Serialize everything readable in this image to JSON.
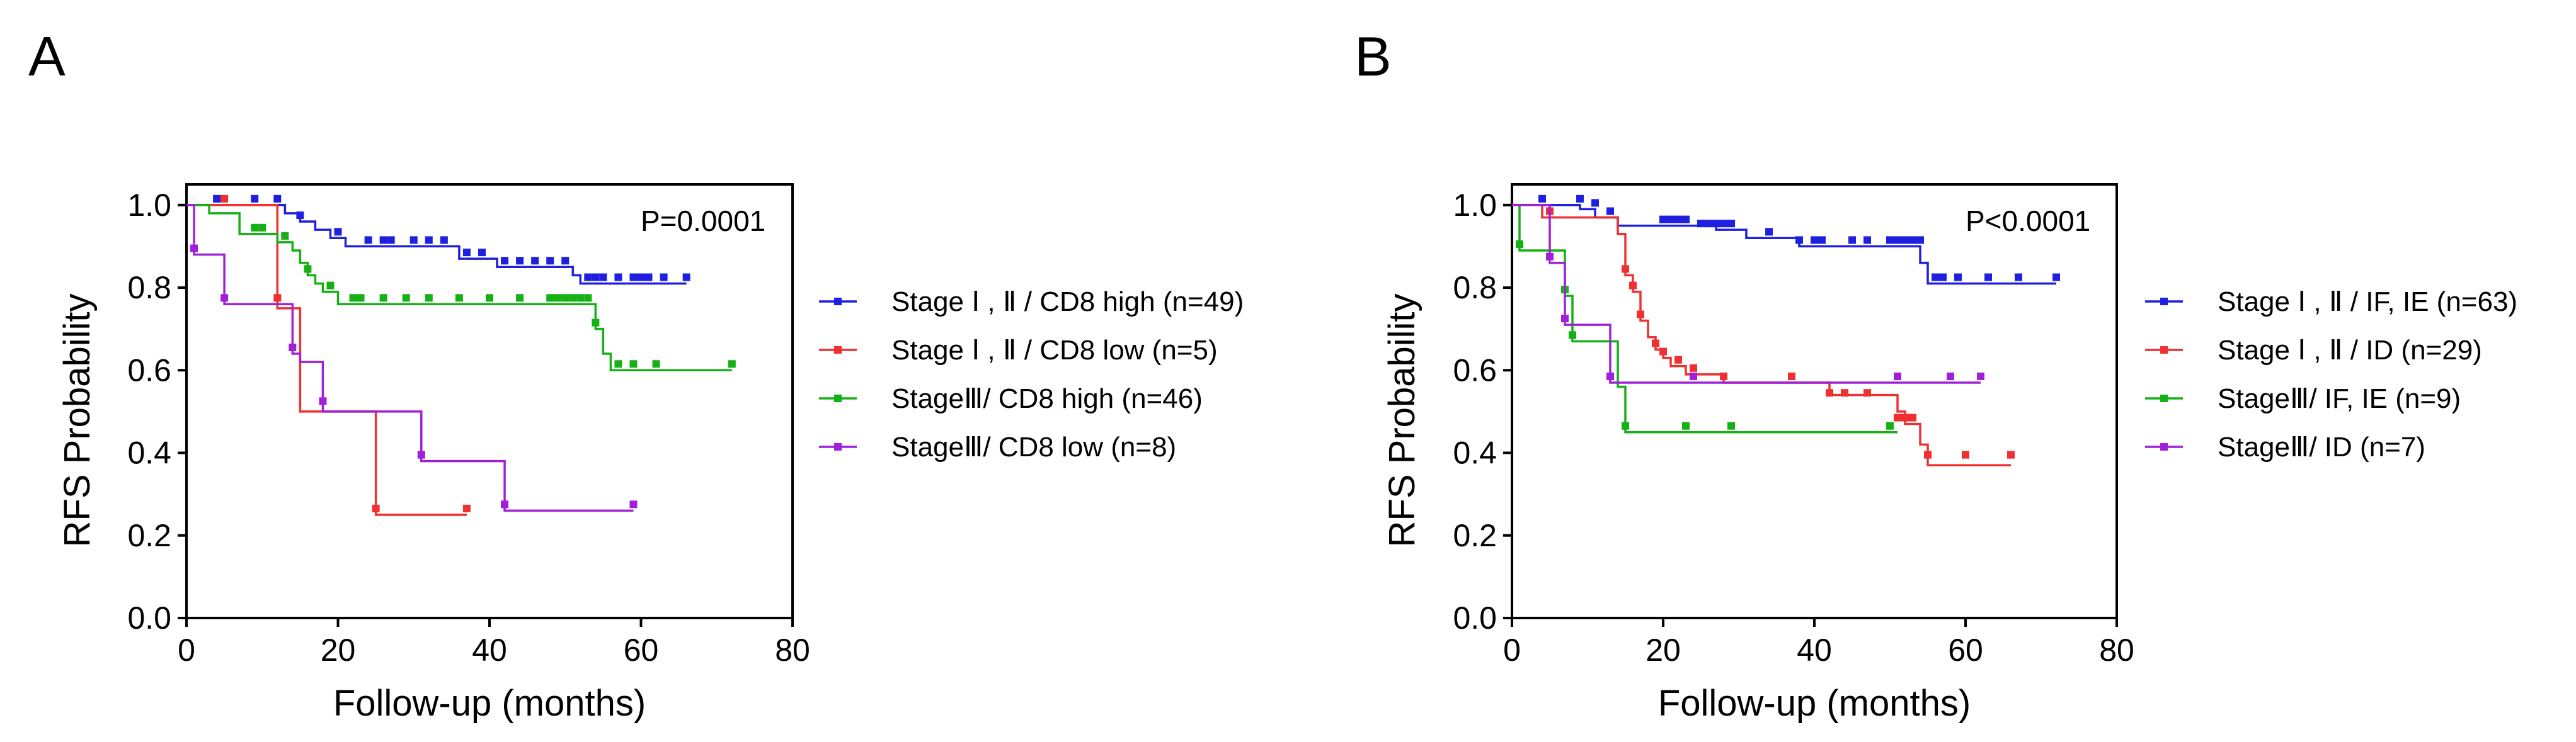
{
  "chart_data": [
    {
      "panel": "A",
      "type": "line",
      "subtype": "kaplan-meier",
      "title": "",
      "xlabel": "Follow-up (months)",
      "ylabel": "RFS Probability",
      "xlim": [
        0,
        80
      ],
      "ylim": [
        0,
        1.0
      ],
      "xticks": [
        "0",
        "20",
        "40",
        "60",
        "80"
      ],
      "yticks": [
        "0.0",
        "0.2",
        "0.4",
        "0.6",
        "0.8",
        "1.0"
      ],
      "pvalue": "P=0.0001",
      "series": [
        {
          "name": "Stage Ⅰ , Ⅱ / CD8 high (n=49)",
          "color": "#1f1fe0",
          "steps": [
            [
              0,
              1.0
            ],
            [
              13,
              0.98
            ],
            [
              15,
              0.96
            ],
            [
              17,
              0.94
            ],
            [
              19,
              0.92
            ],
            [
              21,
              0.9
            ],
            [
              36,
              0.87
            ],
            [
              41,
              0.85
            ],
            [
              51,
              0.83
            ],
            [
              52,
              0.81
            ],
            [
              66,
              0.81
            ]
          ],
          "censors": [
            [
              4,
              1.0
            ],
            [
              9,
              1.0
            ],
            [
              12,
              1.0
            ],
            [
              15,
              0.96
            ],
            [
              20,
              0.92
            ],
            [
              24,
              0.9
            ],
            [
              26,
              0.9
            ],
            [
              27,
              0.9
            ],
            [
              30,
              0.9
            ],
            [
              32,
              0.9
            ],
            [
              34,
              0.9
            ],
            [
              37,
              0.87
            ],
            [
              39,
              0.87
            ],
            [
              42,
              0.85
            ],
            [
              44,
              0.85
            ],
            [
              46,
              0.85
            ],
            [
              48,
              0.85
            ],
            [
              50,
              0.85
            ],
            [
              53,
              0.81
            ],
            [
              54,
              0.81
            ],
            [
              55,
              0.81
            ],
            [
              57,
              0.81
            ],
            [
              59,
              0.81
            ],
            [
              60,
              0.81
            ],
            [
              61,
              0.81
            ],
            [
              63,
              0.81
            ],
            [
              66,
              0.81
            ]
          ]
        },
        {
          "name": "Stage Ⅰ , Ⅱ / CD8 low (n=5)",
          "color": "#f03030",
          "steps": [
            [
              0,
              1.0
            ],
            [
              12,
              0.75
            ],
            [
              15,
              0.5
            ],
            [
              25,
              0.25
            ],
            [
              37,
              0.25
            ]
          ],
          "censors": [
            [
              5,
              1.0
            ],
            [
              12,
              0.76
            ],
            [
              25,
              0.25
            ],
            [
              37,
              0.25
            ]
          ]
        },
        {
          "name": "StageⅢ/ CD8 high (n=46)",
          "color": "#14b014",
          "steps": [
            [
              0,
              1.0
            ],
            [
              3,
              0.98
            ],
            [
              7,
              0.93
            ],
            [
              12,
              0.91
            ],
            [
              14,
              0.89
            ],
            [
              15,
              0.86
            ],
            [
              16,
              0.83
            ],
            [
              17,
              0.81
            ],
            [
              18,
              0.79
            ],
            [
              20,
              0.76
            ],
            [
              54,
              0.7
            ],
            [
              55,
              0.64
            ],
            [
              56,
              0.6
            ],
            [
              72,
              0.6
            ]
          ],
          "censors": [
            [
              9,
              0.93
            ],
            [
              10,
              0.93
            ],
            [
              13,
              0.91
            ],
            [
              16,
              0.83
            ],
            [
              19,
              0.79
            ],
            [
              22,
              0.76
            ],
            [
              23,
              0.76
            ],
            [
              26,
              0.76
            ],
            [
              29,
              0.76
            ],
            [
              32,
              0.76
            ],
            [
              36,
              0.76
            ],
            [
              40,
              0.76
            ],
            [
              44,
              0.76
            ],
            [
              48,
              0.76
            ],
            [
              49,
              0.76
            ],
            [
              50,
              0.76
            ],
            [
              51,
              0.76
            ],
            [
              52,
              0.76
            ],
            [
              53,
              0.76
            ],
            [
              54,
              0.7
            ],
            [
              57,
              0.6
            ],
            [
              59,
              0.6
            ],
            [
              62,
              0.6
            ],
            [
              72,
              0.6
            ]
          ]
        },
        {
          "name": "StageⅢ/ CD8 low (n=8)",
          "color": "#a020d8",
          "steps": [
            [
              0,
              1.0
            ],
            [
              1,
              0.88
            ],
            [
              5,
              0.76
            ],
            [
              14,
              0.64
            ],
            [
              15,
              0.62
            ],
            [
              18,
              0.5
            ],
            [
              31,
              0.38
            ],
            [
              42,
              0.26
            ],
            [
              59,
              0.26
            ]
          ],
          "censors": [
            [
              1,
              0.88
            ],
            [
              5,
              0.76
            ],
            [
              14,
              0.64
            ],
            [
              18,
              0.51
            ],
            [
              31,
              0.38
            ],
            [
              42,
              0.26
            ],
            [
              59,
              0.26
            ]
          ]
        }
      ]
    },
    {
      "panel": "B",
      "type": "line",
      "subtype": "kaplan-meier",
      "title": "",
      "xlabel": "Follow-up (months)",
      "ylabel": "RFS Probability",
      "xlim": [
        0,
        80
      ],
      "ylim": [
        0,
        1.0
      ],
      "xticks": [
        "0",
        "20",
        "40",
        "60",
        "80"
      ],
      "yticks": [
        "0.0",
        "0.2",
        "0.4",
        "0.6",
        "0.8",
        "1.0"
      ],
      "pvalue": "P<0.0001",
      "series": [
        {
          "name": "Stage Ⅰ , Ⅱ / IF, IE (n=63)",
          "color": "#1f1fe0",
          "steps": [
            [
              0,
              1.0
            ],
            [
              9,
              0.99
            ],
            [
              11,
              0.97
            ],
            [
              14,
              0.95
            ],
            [
              27,
              0.94
            ],
            [
              31,
              0.92
            ],
            [
              38,
              0.9
            ],
            [
              54,
              0.86
            ],
            [
              55,
              0.81
            ],
            [
              72,
              0.81
            ]
          ],
          "censors": [
            [
              4,
              1.0
            ],
            [
              9,
              1.0
            ],
            [
              11,
              0.99
            ],
            [
              13,
              0.97
            ],
            [
              20,
              0.95
            ],
            [
              21,
              0.95
            ],
            [
              22,
              0.95
            ],
            [
              23,
              0.95
            ],
            [
              25,
              0.94
            ],
            [
              26,
              0.94
            ],
            [
              27,
              0.94
            ],
            [
              28,
              0.94
            ],
            [
              29,
              0.94
            ],
            [
              34,
              0.92
            ],
            [
              38,
              0.9
            ],
            [
              40,
              0.9
            ],
            [
              41,
              0.9
            ],
            [
              45,
              0.9
            ],
            [
              47,
              0.9
            ],
            [
              50,
              0.9
            ],
            [
              51,
              0.9
            ],
            [
              52,
              0.9
            ],
            [
              53,
              0.9
            ],
            [
              54,
              0.9
            ],
            [
              56,
              0.81
            ],
            [
              57,
              0.81
            ],
            [
              59,
              0.81
            ],
            [
              63,
              0.81
            ],
            [
              67,
              0.81
            ],
            [
              72,
              0.81
            ]
          ]
        },
        {
          "name": "Stage Ⅰ , Ⅱ / ID (n=29)",
          "color": "#f03030",
          "steps": [
            [
              0,
              1.0
            ],
            [
              4,
              0.97
            ],
            [
              14,
              0.93
            ],
            [
              15,
              0.83
            ],
            [
              16,
              0.79
            ],
            [
              17,
              0.72
            ],
            [
              18,
              0.68
            ],
            [
              19,
              0.65
            ],
            [
              20,
              0.63
            ],
            [
              21,
              0.61
            ],
            [
              23,
              0.59
            ],
            [
              28,
              0.57
            ],
            [
              42,
              0.54
            ],
            [
              51,
              0.5
            ],
            [
              52,
              0.47
            ],
            [
              54,
              0.42
            ],
            [
              55,
              0.37
            ],
            [
              66,
              0.37
            ]
          ],
          "censors": [
            [
              5,
              0.97
            ],
            [
              15,
              0.83
            ],
            [
              16,
              0.79
            ],
            [
              17,
              0.72
            ],
            [
              19,
              0.65
            ],
            [
              20,
              0.63
            ],
            [
              22,
              0.61
            ],
            [
              24,
              0.59
            ],
            [
              28,
              0.57
            ],
            [
              37,
              0.57
            ],
            [
              42,
              0.53
            ],
            [
              44,
              0.53
            ],
            [
              47,
              0.53
            ],
            [
              51,
              0.47
            ],
            [
              52,
              0.47
            ],
            [
              53,
              0.47
            ],
            [
              55,
              0.38
            ],
            [
              60,
              0.38
            ],
            [
              66,
              0.38
            ]
          ]
        },
        {
          "name": "StageⅢ/ IF, IE (n=9)",
          "color": "#14b014",
          "steps": [
            [
              0,
              1.0
            ],
            [
              1,
              0.89
            ],
            [
              7,
              0.78
            ],
            [
              8,
              0.67
            ],
            [
              14,
              0.56
            ],
            [
              15,
              0.45
            ],
            [
              51,
              0.45
            ],
            [
              51,
              0.45
            ]
          ],
          "censors": [
            [
              1,
              0.89
            ],
            [
              7,
              0.78
            ],
            [
              8,
              0.67
            ],
            [
              15,
              0.45
            ],
            [
              23,
              0.45
            ],
            [
              29,
              0.45
            ],
            [
              50,
              0.45
            ]
          ]
        },
        {
          "name": "StageⅢ/ ID (n=7)",
          "color": "#a020d8",
          "steps": [
            [
              0,
              1.0
            ],
            [
              5,
              0.86
            ],
            [
              7,
              0.71
            ],
            [
              13,
              0.57
            ],
            [
              62,
              0.57
            ]
          ],
          "censors": [
            [
              5,
              0.86
            ],
            [
              7,
              0.71
            ],
            [
              13,
              0.57
            ],
            [
              24,
              0.57
            ],
            [
              51,
              0.57
            ],
            [
              58,
              0.57
            ],
            [
              62,
              0.57
            ]
          ]
        }
      ]
    }
  ]
}
